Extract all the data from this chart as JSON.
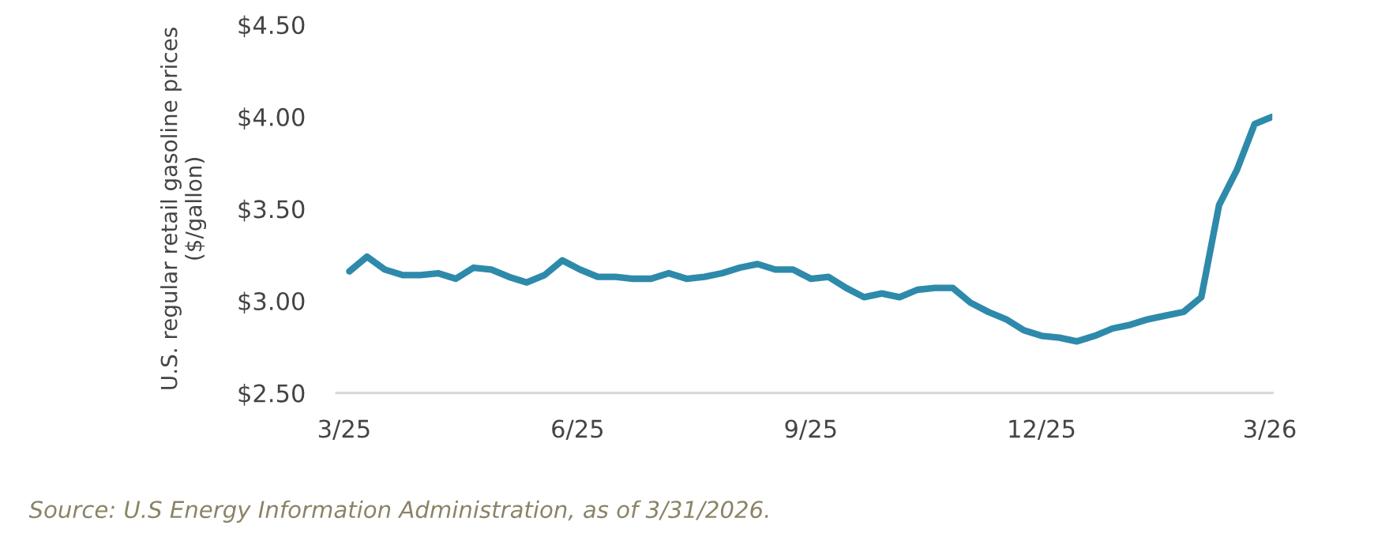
{
  "chart_data": {
    "type": "line",
    "ylabel": "U.S. regular retail gasoline prices\n($/gallon)",
    "annotations": [
      "Source: U.S Energy Information Administration, as of 3/31/2026."
    ],
    "x": [
      "2025-03-03",
      "2025-03-10",
      "2025-03-17",
      "2025-03-24",
      "2025-03-31",
      "2025-04-07",
      "2025-04-14",
      "2025-04-21",
      "2025-04-28",
      "2025-05-05",
      "2025-05-12",
      "2025-05-19",
      "2025-05-26",
      "2025-06-02",
      "2025-06-09",
      "2025-06-16",
      "2025-06-23",
      "2025-06-30",
      "2025-07-07",
      "2025-07-14",
      "2025-07-21",
      "2025-07-28",
      "2025-08-04",
      "2025-08-11",
      "2025-08-18",
      "2025-08-25",
      "2025-09-01",
      "2025-09-08",
      "2025-09-15",
      "2025-09-22",
      "2025-09-29",
      "2025-10-06",
      "2025-10-13",
      "2025-10-20",
      "2025-10-27",
      "2025-11-03",
      "2025-11-10",
      "2025-11-17",
      "2025-11-24",
      "2025-12-01",
      "2025-12-08",
      "2025-12-15",
      "2025-12-22",
      "2025-12-29",
      "2026-01-05",
      "2026-01-12",
      "2026-01-19",
      "2026-01-26",
      "2026-02-02",
      "2026-02-09",
      "2026-02-16",
      "2026-02-23",
      "2026-03-02"
    ],
    "series": [
      {
        "color": "#2e8aaa",
        "values": [
          3.16,
          3.24,
          3.17,
          3.14,
          3.14,
          3.15,
          3.12,
          3.18,
          3.17,
          3.13,
          3.1,
          3.14,
          3.22,
          3.17,
          3.13,
          3.13,
          3.12,
          3.12,
          3.15,
          3.12,
          3.13,
          3.15,
          3.18,
          3.2,
          3.17,
          3.17,
          3.12,
          3.13,
          3.07,
          3.02,
          3.04,
          3.02,
          3.06,
          3.07,
          3.07,
          2.99,
          2.94,
          2.9,
          2.84,
          2.81,
          2.8,
          2.78,
          2.81,
          2.85,
          2.87,
          2.9,
          2.92,
          2.94,
          3.02,
          3.52,
          3.71,
          3.96,
          4.0
        ]
      }
    ],
    "xlim": [
      "2025-02-26",
      "2026-03-02"
    ],
    "xticks": [
      {
        "value": "2025-03-01",
        "label": "3/25"
      },
      {
        "value": "2025-06-01",
        "label": "6/25"
      },
      {
        "value": "2025-09-01",
        "label": "9/25"
      },
      {
        "value": "2025-12-01",
        "label": "12/25"
      },
      {
        "value": "2026-03-01",
        "label": "3/26"
      }
    ],
    "ylim": [
      2.5,
      4.5
    ],
    "yticks": [
      {
        "value": 2.5,
        "label": "$2.50"
      },
      {
        "value": 3.0,
        "label": "$3.00"
      },
      {
        "value": 3.5,
        "label": "$3.50"
      },
      {
        "value": 4.0,
        "label": "$4.00"
      },
      {
        "value": 4.5,
        "label": "$4.50"
      }
    ],
    "grid": false,
    "marker": "none",
    "line_style": "solid"
  }
}
